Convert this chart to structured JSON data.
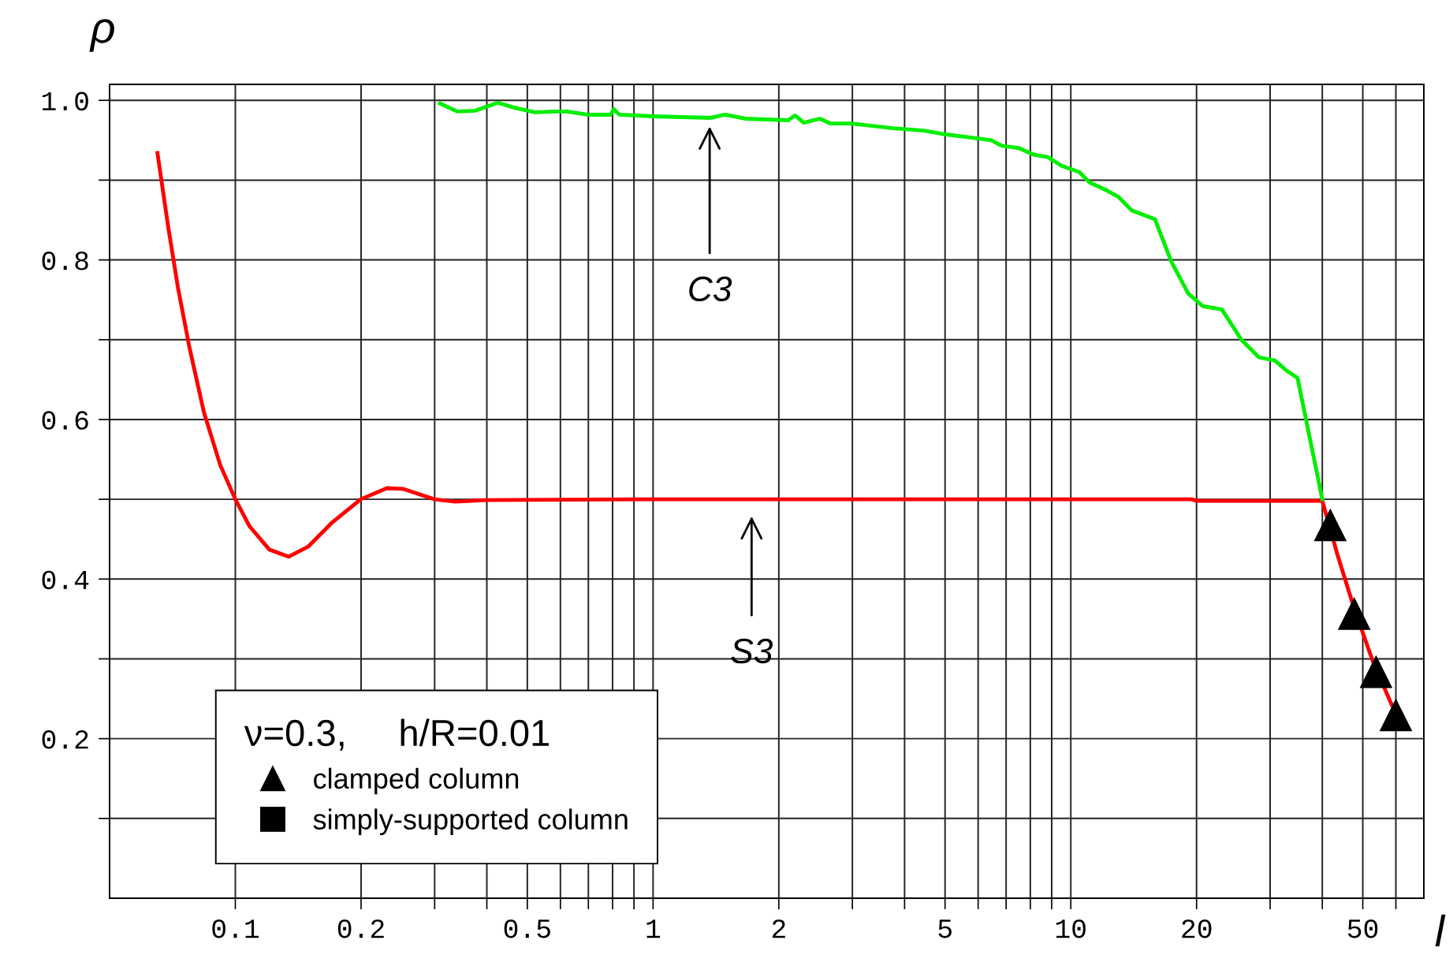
{
  "chart_data": {
    "type": "line",
    "xlabel": "l",
    "ylabel": "ρ",
    "legend_title": "ν=0.3,     h/R=0.01",
    "xlim": [
      0.05,
      70
    ],
    "ylim": [
      0,
      1.02
    ],
    "log": "x",
    "xticks": [
      0.1,
      0.2,
      {
        "value": 0.3,
        "label": null
      },
      {
        "value": 0.4,
        "label": null
      },
      0.5,
      {
        "value": 0.6,
        "label": null
      },
      {
        "value": 0.7,
        "label": null
      },
      {
        "value": 0.8,
        "label": null
      },
      {
        "value": 0.9,
        "label": null
      },
      1,
      2,
      {
        "value": 3,
        "label": null
      },
      {
        "value": 4,
        "label": null
      },
      5,
      {
        "value": 6,
        "label": null
      },
      {
        "value": 7,
        "label": null
      },
      {
        "value": 8,
        "label": null
      },
      {
        "value": 9,
        "label": null
      },
      10,
      20,
      {
        "value": 30,
        "label": null
      },
      {
        "value": 40,
        "label": null
      },
      50,
      {
        "value": 60,
        "label": null
      }
    ],
    "yticks": [
      {
        "value": 0.1,
        "label": null
      },
      0.2,
      {
        "value": 0.3,
        "label": null
      },
      0.4,
      {
        "value": 0.5,
        "label": null
      },
      0.6,
      {
        "value": 0.7,
        "label": null
      },
      0.8,
      {
        "value": 0.9,
        "label": null
      },
      {
        "value": 1,
        "label": "1.0"
      }
    ],
    "grid": true,
    "legend": "bottom left",
    "series": [
      {
        "color": "#ff0000",
        "line_style": "solid",
        "marker": "none",
        "x": [
          0.0651,
          0.069,
          0.0729,
          0.0776,
          0.0841,
          0.092,
          0.1,
          0.1082,
          0.1206,
          0.1343,
          0.1497,
          0.1698,
          0.1996,
          0.2306,
          0.2523,
          0.2998,
          0.336,
          0.4,
          1,
          5,
          19.5,
          20,
          40,
          43.4,
          47.5,
          53.0,
          58.7
        ],
        "values": [
          0.934,
          0.843,
          0.765,
          0.691,
          0.609,
          0.543,
          0.5,
          0.466,
          0.437,
          0.428,
          0.441,
          0.47,
          0.5,
          0.514,
          0.513,
          0.5,
          0.497,
          0.499,
          0.5,
          0.5,
          0.5,
          0.498,
          0.498,
          0.432,
          0.366,
          0.295,
          0.242
        ]
      },
      {
        "color": "#00ee00",
        "line_style": "solid",
        "marker": "none",
        "x": [
          0.309,
          0.34,
          0.375,
          0.425,
          0.464,
          0.521,
          0.586,
          0.621,
          0.697,
          0.791,
          0.806,
          0.83,
          1.0,
          1.374,
          1.485,
          1.668,
          2.105,
          2.187,
          2.296,
          2.505,
          2.656,
          2.98,
          3.76,
          4.45,
          4.91,
          5.85,
          6.45,
          6.84,
          7.53,
          8.14,
          8.8,
          9.51,
          10.48,
          11.1,
          12.2,
          13.0,
          14.0,
          15.9,
          17.4,
          19.1,
          20.7,
          23.0,
          25.6,
          28.2,
          30.8,
          32.9,
          34.9,
          36.3,
          40.0
        ],
        "values": [
          0.996,
          0.986,
          0.987,
          0.997,
          0.991,
          0.985,
          0.986,
          0.986,
          0.982,
          0.982,
          0.989,
          0.982,
          0.98,
          0.978,
          0.982,
          0.977,
          0.975,
          0.981,
          0.972,
          0.977,
          0.971,
          0.971,
          0.965,
          0.962,
          0.958,
          0.953,
          0.95,
          0.943,
          0.94,
          0.932,
          0.929,
          0.918,
          0.91,
          0.897,
          0.887,
          0.879,
          0.862,
          0.851,
          0.798,
          0.758,
          0.742,
          0.738,
          0.7,
          0.678,
          0.674,
          0.661,
          0.652,
          0.608,
          0.5
        ]
      },
      {
        "type": "scatter",
        "name": "clamped column",
        "color": "#000000",
        "marker": "triangle",
        "x": [
          41.8,
          47.7,
          53.8,
          60
        ],
        "values": [
          0.468,
          0.357,
          0.284,
          0.23
        ]
      },
      {
        "type": "scatter",
        "name": "simply-supported column",
        "color": "#000000",
        "marker": "square"
      }
    ],
    "annotations": [
      "C3",
      "S3"
    ]
  }
}
